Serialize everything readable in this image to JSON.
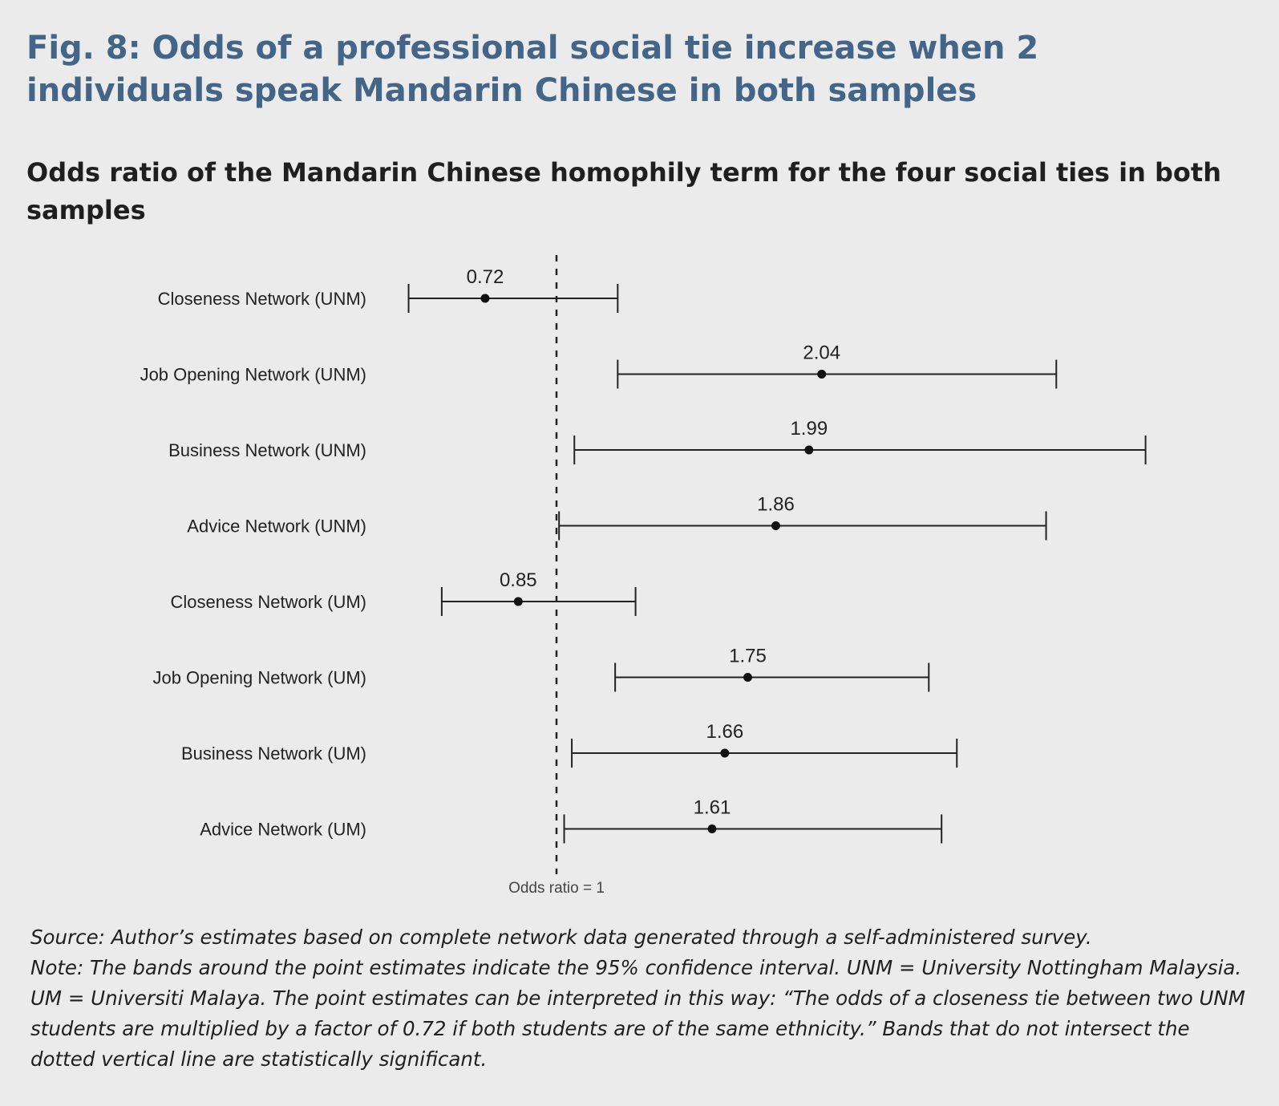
{
  "title": "Fig. 8: Odds of a professional social tie increase when 2 individuals speak Mandarin Chinese in both samples",
  "subtitle": "Odds ratio of the Mandarin Chinese homophily term for the four social ties in both samples",
  "chart_data": {
    "type": "forest",
    "categories": [
      "Closeness Network (UNM)",
      "Job Opening Network (UNM)",
      "Business Network (UNM)",
      "Advice Network (UNM)",
      "Closeness Network (UM)",
      "Job Opening Network (UM)",
      "Business Network (UM)",
      "Advice Network (UM)"
    ],
    "estimates": [
      0.72,
      2.04,
      1.99,
      1.86,
      0.85,
      1.75,
      1.66,
      1.61
    ],
    "estimate_labels": [
      "0.72",
      "2.04",
      "1.99",
      "1.86",
      "0.85",
      "1.75",
      "1.66",
      "1.61"
    ],
    "ci_lower": [
      0.42,
      1.24,
      1.07,
      1.01,
      0.55,
      1.23,
      1.06,
      1.03
    ],
    "ci_upper": [
      1.24,
      2.96,
      3.31,
      2.92,
      1.31,
      2.46,
      2.57,
      2.51
    ],
    "reference_value": 1,
    "reference_label": "Odds ratio = 1",
    "xlim": [
      0.3,
      3.4
    ],
    "grid": false,
    "legend": "none"
  },
  "notes": {
    "source": "Source: Author’s estimates based on complete network data generated through a self-administered survey.",
    "note": "Note: The bands around the point estimates indicate the 95% confidence interval. UNM = University Nottingham Malaysia. UM = Universiti Malaya. The point estimates can be interpreted in this way: “The odds of a closeness tie between two UNM students are multiplied by a factor of 0.72 if both students are of the same ethnicity.” Bands that do not intersect the dotted vertical line are statistically significant."
  }
}
